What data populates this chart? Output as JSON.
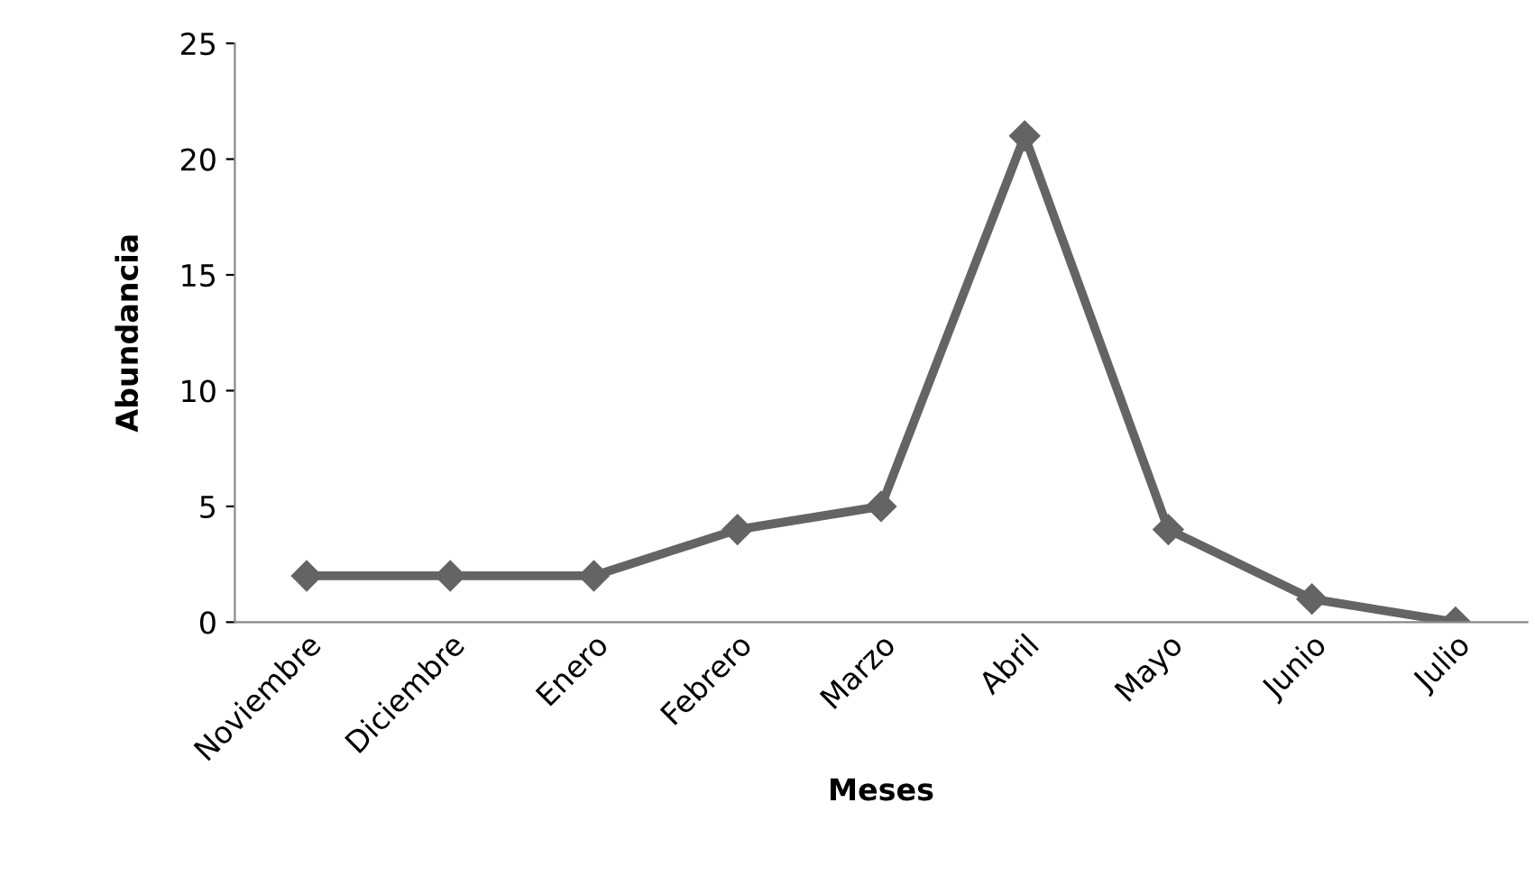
{
  "chart_data": {
    "type": "line",
    "xlabel": "Meses",
    "ylabel": "Abundancia",
    "categories": [
      "Noviembre",
      "Diciembre",
      "Enero",
      "Febrero",
      "Marzo",
      "Abril",
      "Mayo",
      "Junio",
      "Julio"
    ],
    "series": [
      {
        "color": "#646464",
        "values": [
          2,
          2,
          2,
          4,
          5,
          21,
          4,
          1,
          0
        ]
      }
    ],
    "ylim": [
      0,
      25
    ],
    "yticks": [
      0,
      5,
      10,
      15,
      20,
      25
    ],
    "grid": false,
    "legend": false,
    "marker": "diamond",
    "line_style": "solid"
  }
}
